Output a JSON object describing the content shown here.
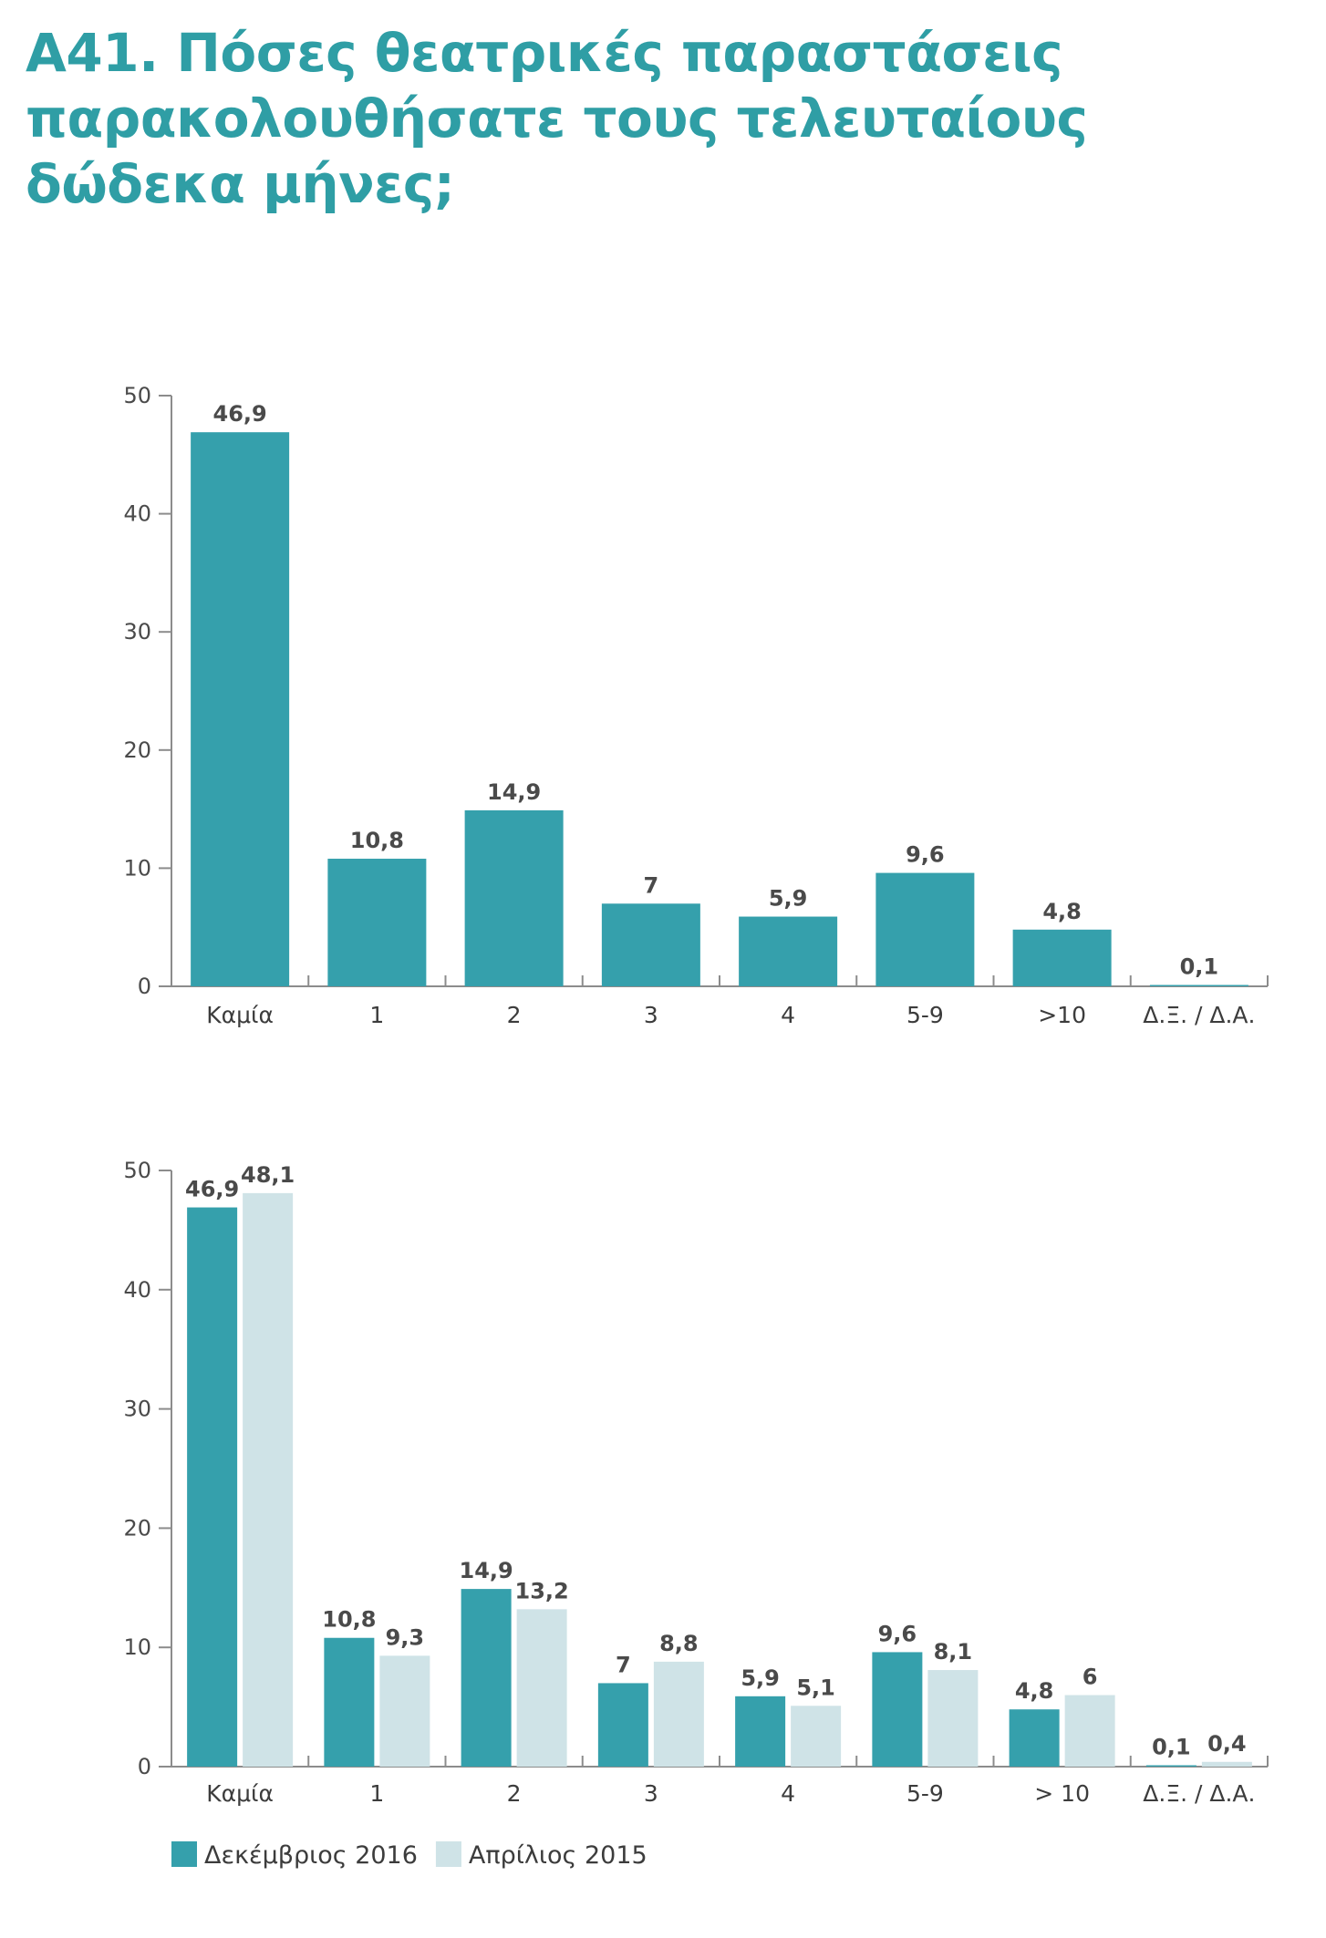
{
  "title": "A41. Πόσες θεατρικές παραστάσεις παρακολουθήσατε τους τελευταίους δώδεκα μήνες;",
  "colors": {
    "title": "#2f9ea5",
    "primary": "#35a0ac",
    "secondary": "#cfe3e7",
    "axis": "#8c8c8c"
  },
  "chart_data": [
    {
      "type": "bar",
      "title": "",
      "xlabel": "",
      "ylabel": "",
      "ylim": [
        0,
        50
      ],
      "yticks": [
        0,
        10,
        20,
        30,
        40,
        50
      ],
      "grid": false,
      "categories": [
        "Καμία",
        "1",
        "2",
        "3",
        "4",
        "5-9",
        ">10",
        "Δ.Ξ. / Δ.Α."
      ],
      "series": [
        {
          "name": "",
          "color": "#35a0ac",
          "values": [
            46.9,
            10.8,
            14.9,
            7,
            5.9,
            9.6,
            4.8,
            0.1
          ],
          "labels": [
            "46,9",
            "10,8",
            "14,9",
            "7",
            "5,9",
            "9,6",
            "4,8",
            "0,1"
          ]
        }
      ]
    },
    {
      "type": "bar",
      "title": "",
      "xlabel": "",
      "ylabel": "",
      "ylim": [
        0,
        50
      ],
      "yticks": [
        0,
        10,
        20,
        30,
        40,
        50
      ],
      "grid": false,
      "legend": "bottom-left",
      "categories": [
        "Καμία",
        "1",
        "2",
        "3",
        "4",
        "5-9",
        "> 10",
        "Δ.Ξ. / Δ.Α."
      ],
      "series": [
        {
          "name": "Δεκέμβριος 2016",
          "color": "#35a0ac",
          "values": [
            46.9,
            10.8,
            14.9,
            7,
            5.9,
            9.6,
            4.8,
            0.1
          ],
          "labels": [
            "46,9",
            "10,8",
            "14,9",
            "7",
            "5,9",
            "9,6",
            "4,8",
            "0,1"
          ]
        },
        {
          "name": "Απρίλιος 2015",
          "color": "#cfe3e7",
          "values": [
            48.1,
            9.3,
            13.2,
            8.8,
            5.1,
            8.1,
            6,
            0.4
          ],
          "labels": [
            "48,1",
            "9,3",
            "13,2",
            "8,8",
            "5,1",
            "8,1",
            "6",
            "0,4"
          ]
        }
      ]
    }
  ]
}
